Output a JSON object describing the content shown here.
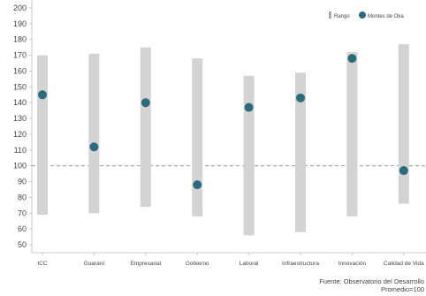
{
  "chart_data": {
    "type": "range-dot",
    "categories": [
      "ICC",
      "Guaraní",
      "Empresarial",
      "Gobierno",
      "Laboral",
      "Infraestructura",
      "Innovación",
      "Calidad de Vida"
    ],
    "series": [
      {
        "name": "Rango",
        "type": "range",
        "low": [
          69,
          70,
          74,
          68,
          56,
          58,
          68,
          76
        ],
        "high": [
          170,
          171,
          175,
          168,
          157,
          159,
          172,
          177
        ]
      },
      {
        "name": "Montes de Oka",
        "type": "point",
        "values": [
          145,
          112,
          140,
          88,
          137,
          143,
          168,
          97
        ]
      }
    ],
    "reference_line": 100,
    "ylim": [
      45,
      205
    ],
    "yticks": [
      50,
      60,
      70,
      80,
      90,
      100,
      110,
      120,
      130,
      140,
      150,
      160,
      170,
      180,
      190,
      200
    ],
    "legend_position": "top-right",
    "colors": {
      "range": "#d3d3d3",
      "point": "#2a6b80",
      "reference": "#888888"
    },
    "source": "Fuente: Observatorio del Desarrollo",
    "note": "Promedio=100"
  }
}
